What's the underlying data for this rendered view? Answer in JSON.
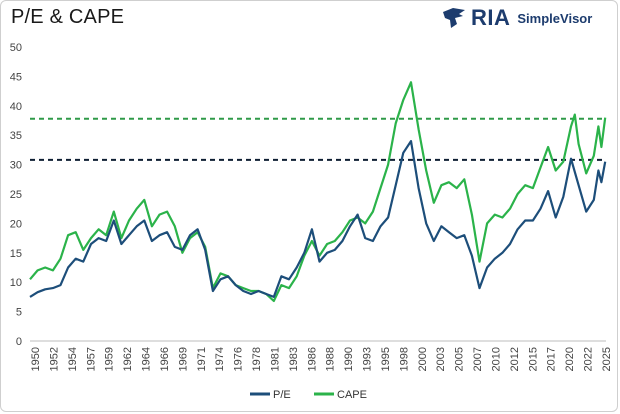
{
  "header": {
    "title": "P/E & CAPE",
    "brand_name": "RIA",
    "brand_sub": "SimpleVisor",
    "brand_color": "#1d3c6e"
  },
  "chart_data": {
    "type": "line",
    "title": "P/E & CAPE",
    "xlabel": "",
    "ylabel": "",
    "xlim": [
      1950,
      2025.6
    ],
    "ylim": [
      0,
      50
    ],
    "yticks": [
      0,
      5,
      10,
      15,
      20,
      25,
      30,
      35,
      40,
      45,
      50
    ],
    "xtick_labels": [
      "1950",
      "1952",
      "1954",
      "1957",
      "1959",
      "1962",
      "1964",
      "1966",
      "1969",
      "1971",
      "1974",
      "1976",
      "1978",
      "1981",
      "1983",
      "1986",
      "1988",
      "1990",
      "1993",
      "1995",
      "1998",
      "2000",
      "2003",
      "2005",
      "2007",
      "2010",
      "2012",
      "2015",
      "2017",
      "2020",
      "2022",
      "2025"
    ],
    "grid": false,
    "legend_position": "bottom",
    "series": [
      {
        "name": "P/E",
        "color": "#1d4e7a",
        "points": [
          [
            1950,
            7.5
          ],
          [
            1951,
            8.3
          ],
          [
            1952,
            8.8
          ],
          [
            1953,
            9.0
          ],
          [
            1954,
            9.5
          ],
          [
            1955,
            12.5
          ],
          [
            1956,
            14.0
          ],
          [
            1957,
            13.5
          ],
          [
            1958,
            16.5
          ],
          [
            1959,
            17.5
          ],
          [
            1960,
            17.0
          ],
          [
            1961,
            20.5
          ],
          [
            1962,
            16.5
          ],
          [
            1963,
            18.0
          ],
          [
            1964,
            19.5
          ],
          [
            1965,
            20.5
          ],
          [
            1966,
            17.0
          ],
          [
            1967,
            18.0
          ],
          [
            1968,
            18.5
          ],
          [
            1969,
            16.0
          ],
          [
            1970,
            15.5
          ],
          [
            1971,
            18.0
          ],
          [
            1972,
            19.0
          ],
          [
            1973,
            15.5
          ],
          [
            1974,
            8.5
          ],
          [
            1975,
            10.5
          ],
          [
            1976,
            11.0
          ],
          [
            1977,
            9.5
          ],
          [
            1978,
            8.5
          ],
          [
            1979,
            8.0
          ],
          [
            1980,
            8.5
          ],
          [
            1981,
            8.0
          ],
          [
            1982,
            7.5
          ],
          [
            1983,
            11.0
          ],
          [
            1984,
            10.5
          ],
          [
            1985,
            12.5
          ],
          [
            1986,
            15.0
          ],
          [
            1987,
            19.0
          ],
          [
            1988,
            13.5
          ],
          [
            1989,
            15.0
          ],
          [
            1990,
            15.5
          ],
          [
            1991,
            17.0
          ],
          [
            1992,
            19.5
          ],
          [
            1993,
            21.5
          ],
          [
            1994,
            17.5
          ],
          [
            1995,
            17.0
          ],
          [
            1996,
            19.5
          ],
          [
            1997,
            21.0
          ],
          [
            1998,
            26.5
          ],
          [
            1999,
            32.0
          ],
          [
            2000,
            34.0
          ],
          [
            2001,
            26.0
          ],
          [
            2002,
            20.0
          ],
          [
            2003,
            17.0
          ],
          [
            2004,
            19.5
          ],
          [
            2005,
            18.5
          ],
          [
            2006,
            17.5
          ],
          [
            2007,
            18.0
          ],
          [
            2008,
            14.5
          ],
          [
            2009,
            9.0
          ],
          [
            2010,
            12.5
          ],
          [
            2011,
            14.0
          ],
          [
            2012,
            15.0
          ],
          [
            2013,
            16.5
          ],
          [
            2014,
            19.0
          ],
          [
            2015,
            20.5
          ],
          [
            2016,
            20.5
          ],
          [
            2017,
            22.5
          ],
          [
            2018,
            25.5
          ],
          [
            2019,
            21.0
          ],
          [
            2020,
            24.5
          ],
          [
            2021,
            31.0
          ],
          [
            2022,
            26.5
          ],
          [
            2023,
            22.0
          ],
          [
            2024,
            24.0
          ],
          [
            2024.6,
            29.0
          ],
          [
            2025,
            27.0
          ],
          [
            2025.5,
            30.5
          ]
        ]
      },
      {
        "name": "CAPE",
        "color": "#2bb34a",
        "points": [
          [
            1950,
            10.5
          ],
          [
            1951,
            12.0
          ],
          [
            1952,
            12.5
          ],
          [
            1953,
            12.0
          ],
          [
            1954,
            14.0
          ],
          [
            1955,
            18.0
          ],
          [
            1956,
            18.5
          ],
          [
            1957,
            15.5
          ],
          [
            1958,
            17.5
          ],
          [
            1959,
            19.0
          ],
          [
            1960,
            18.0
          ],
          [
            1961,
            22.0
          ],
          [
            1962,
            17.5
          ],
          [
            1963,
            20.5
          ],
          [
            1964,
            22.5
          ],
          [
            1965,
            24.0
          ],
          [
            1966,
            19.5
          ],
          [
            1967,
            21.5
          ],
          [
            1968,
            22.0
          ],
          [
            1969,
            19.5
          ],
          [
            1970,
            15.0
          ],
          [
            1971,
            17.5
          ],
          [
            1972,
            18.5
          ],
          [
            1973,
            16.0
          ],
          [
            1974,
            9.0
          ],
          [
            1975,
            11.5
          ],
          [
            1976,
            11.0
          ],
          [
            1977,
            9.5
          ],
          [
            1978,
            9.0
          ],
          [
            1979,
            8.5
          ],
          [
            1980,
            8.5
          ],
          [
            1981,
            8.0
          ],
          [
            1982,
            6.8
          ],
          [
            1983,
            9.5
          ],
          [
            1984,
            9.0
          ],
          [
            1985,
            11.0
          ],
          [
            1986,
            14.5
          ],
          [
            1987,
            17.0
          ],
          [
            1988,
            14.5
          ],
          [
            1989,
            16.5
          ],
          [
            1990,
            17.0
          ],
          [
            1991,
            18.5
          ],
          [
            1992,
            20.5
          ],
          [
            1993,
            21.0
          ],
          [
            1994,
            20.0
          ],
          [
            1995,
            22.0
          ],
          [
            1996,
            26.0
          ],
          [
            1997,
            30.0
          ],
          [
            1998,
            37.0
          ],
          [
            1999,
            41.0
          ],
          [
            2000,
            44.0
          ],
          [
            2001,
            36.0
          ],
          [
            2002,
            29.0
          ],
          [
            2003,
            23.5
          ],
          [
            2004,
            26.5
          ],
          [
            2005,
            27.0
          ],
          [
            2006,
            26.0
          ],
          [
            2007,
            27.5
          ],
          [
            2008,
            21.5
          ],
          [
            2009,
            13.5
          ],
          [
            2010,
            20.0
          ],
          [
            2011,
            21.5
          ],
          [
            2012,
            21.0
          ],
          [
            2013,
            22.5
          ],
          [
            2014,
            25.0
          ],
          [
            2015,
            26.5
          ],
          [
            2016,
            26.0
          ],
          [
            2017,
            29.5
          ],
          [
            2018,
            33.0
          ],
          [
            2019,
            29.0
          ],
          [
            2020,
            30.5
          ],
          [
            2021,
            36.5
          ],
          [
            2021.5,
            38.5
          ],
          [
            2022,
            33.5
          ],
          [
            2023,
            28.5
          ],
          [
            2024,
            31.5
          ],
          [
            2024.6,
            36.5
          ],
          [
            2025,
            33.0
          ],
          [
            2025.5,
            38.0
          ]
        ]
      }
    ],
    "reference_lines": [
      {
        "series": "P/E",
        "value": 30.8,
        "style": "dashed",
        "color": "#0f1f33"
      },
      {
        "series": "CAPE",
        "value": 37.8,
        "style": "dashed",
        "color": "#2f9a48"
      }
    ]
  }
}
